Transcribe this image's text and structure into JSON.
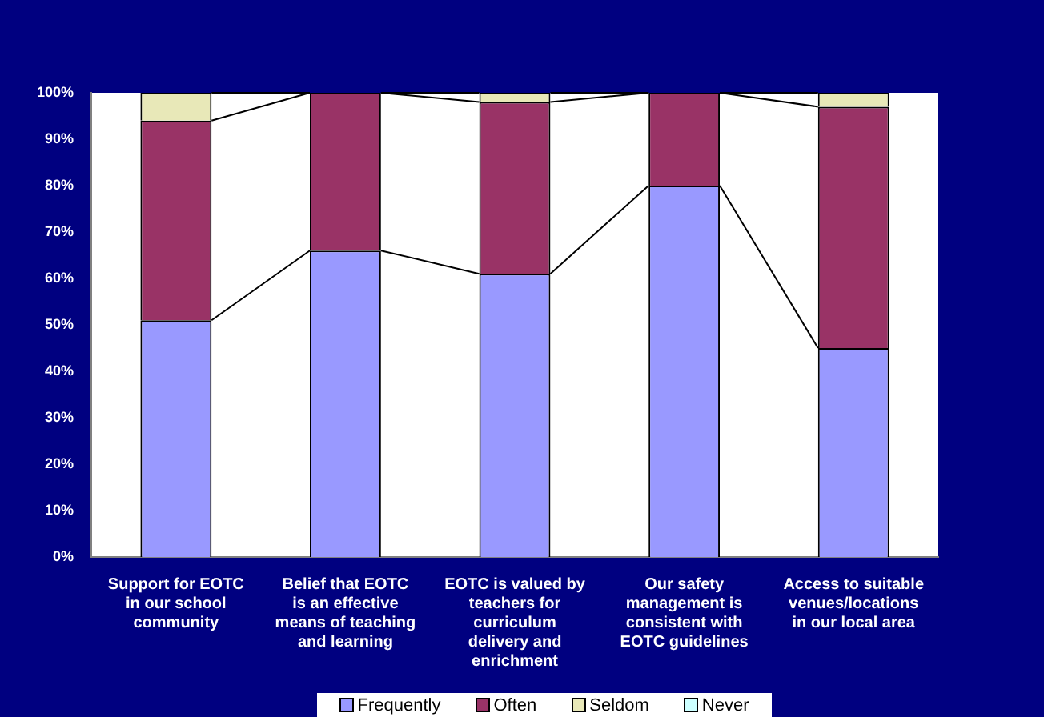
{
  "chart_data": {
    "type": "bar",
    "stacked": true,
    "categories": [
      "Support for EOTC in our school community",
      "Belief that EOTC is an effective means of teaching and learning",
      "EOTC is valued by teachers for curriculum delivery and enrichment",
      "Our safety management is consistent with EOTC guidelines",
      "Access to suitable venues/locations in our local area"
    ],
    "series": [
      {
        "name": "Frequently",
        "color": "#9999ff",
        "values": [
          51,
          66,
          61,
          80,
          45
        ]
      },
      {
        "name": "Often",
        "color": "#993366",
        "values": [
          43,
          34,
          37,
          20,
          52
        ]
      },
      {
        "name": "Seldom",
        "color": "#e8e8b8",
        "values": [
          6,
          0,
          2,
          0,
          3
        ]
      },
      {
        "name": "Never",
        "color": "#ccffff",
        "values": [
          0,
          0,
          0,
          0,
          0
        ]
      }
    ],
    "ylim": [
      0,
      100
    ],
    "yticks": [
      {
        "value": 0,
        "label": "0%"
      },
      {
        "value": 10,
        "label": "10%"
      },
      {
        "value": 20,
        "label": "20%"
      },
      {
        "value": 30,
        "label": "30%"
      },
      {
        "value": 40,
        "label": "40%"
      },
      {
        "value": 50,
        "label": "50%"
      },
      {
        "value": 60,
        "label": "60%"
      },
      {
        "value": 70,
        "label": "70%"
      },
      {
        "value": 80,
        "label": "80%"
      },
      {
        "value": 90,
        "label": "90%"
      },
      {
        "value": 100,
        "label": "100%"
      }
    ],
    "grid": false,
    "legend": "bottom"
  }
}
